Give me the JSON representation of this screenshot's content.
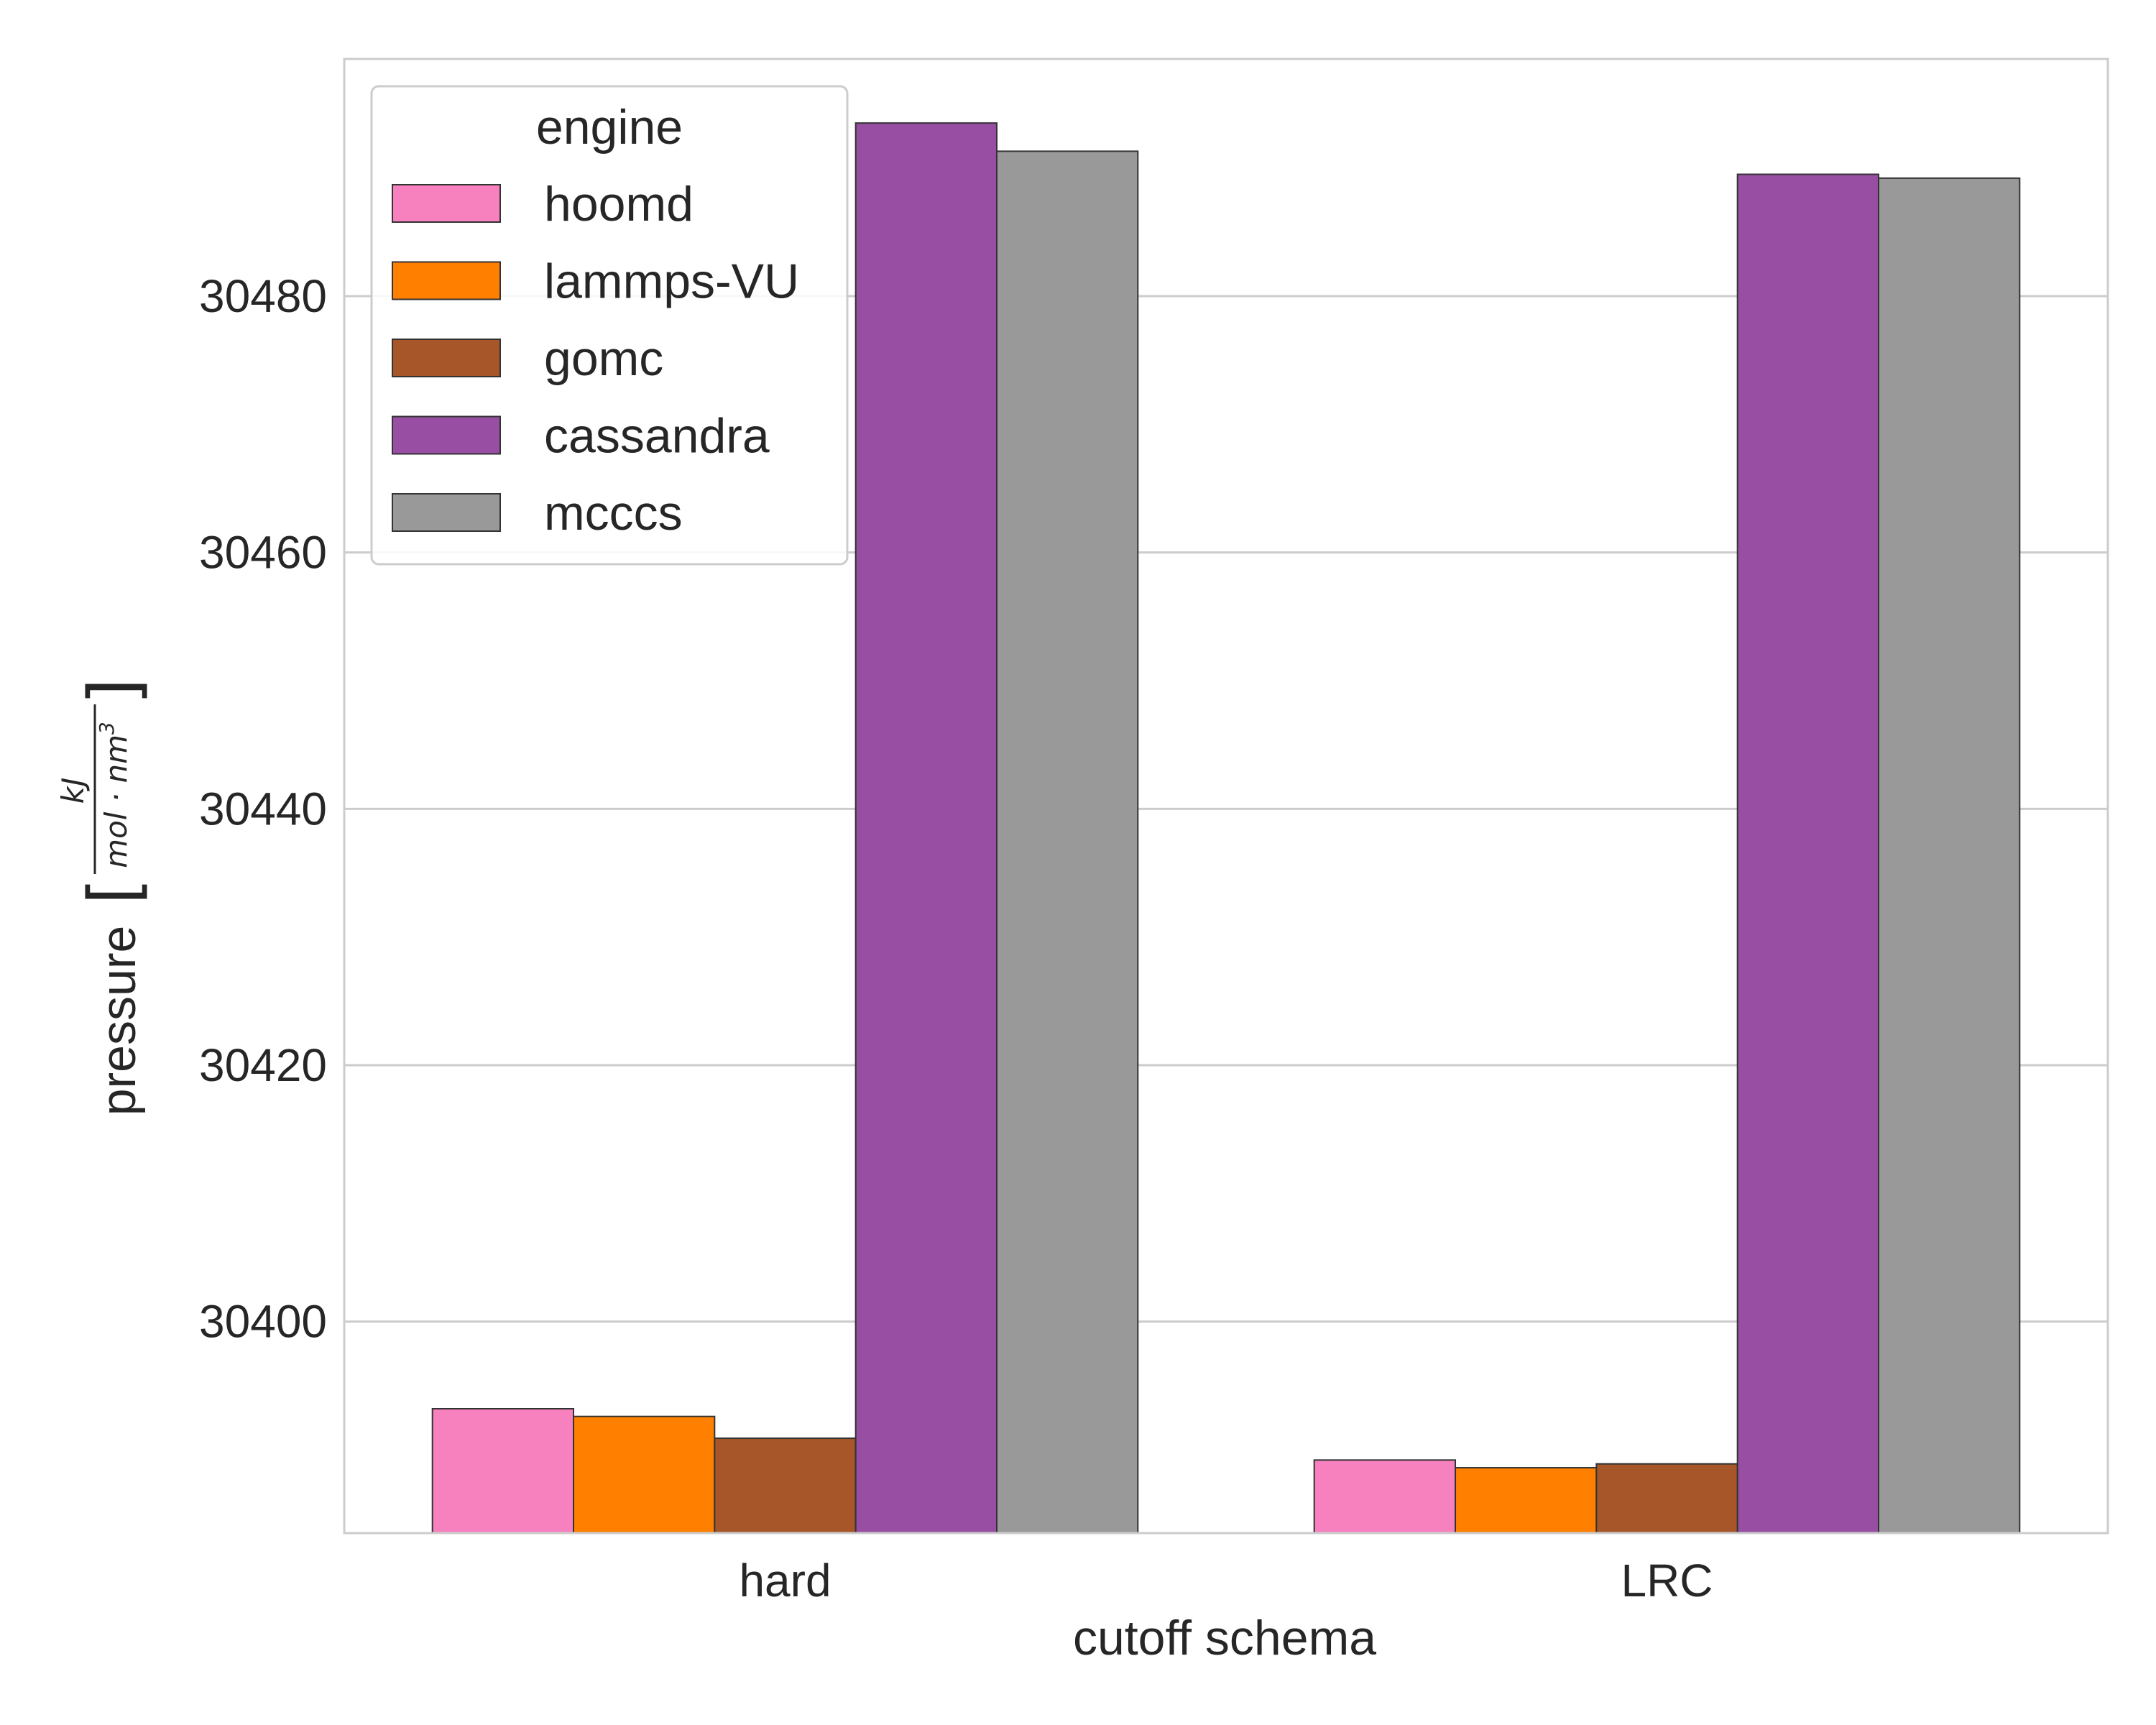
{
  "chart_data": {
    "type": "bar",
    "title": "",
    "xlabel": "cutoff schema",
    "ylabel": "pressure",
    "ylabel_unit": {
      "numerator": "kJ",
      "denominator": "mol · nm",
      "denominator_exponent": "3",
      "open_bracket": "[",
      "close_bracket": "]"
    },
    "categories": [
      "hard",
      "LRC"
    ],
    "series": [
      {
        "name": "hoomd",
        "color": "#f781bf",
        "values": [
          30393.2,
          30389.2
        ]
      },
      {
        "name": "lammps-VU",
        "color": "#ff7f00",
        "values": [
          30392.6,
          30388.6
        ]
      },
      {
        "name": "gomc",
        "color": "#a65628",
        "values": [
          30390.9,
          30388.9
        ]
      },
      {
        "name": "cassandra",
        "color": "#984ea3",
        "values": [
          30493.5,
          30489.5
        ]
      },
      {
        "name": "mcccs",
        "color": "#999999",
        "values": [
          30491.3,
          30489.2
        ]
      }
    ],
    "ylim": [
      30383.5,
      30498.5
    ],
    "yticks": [
      30400,
      30420,
      30440,
      30460,
      30480
    ],
    "grid": true,
    "legend": {
      "title": "engine",
      "position": "top-left"
    }
  }
}
